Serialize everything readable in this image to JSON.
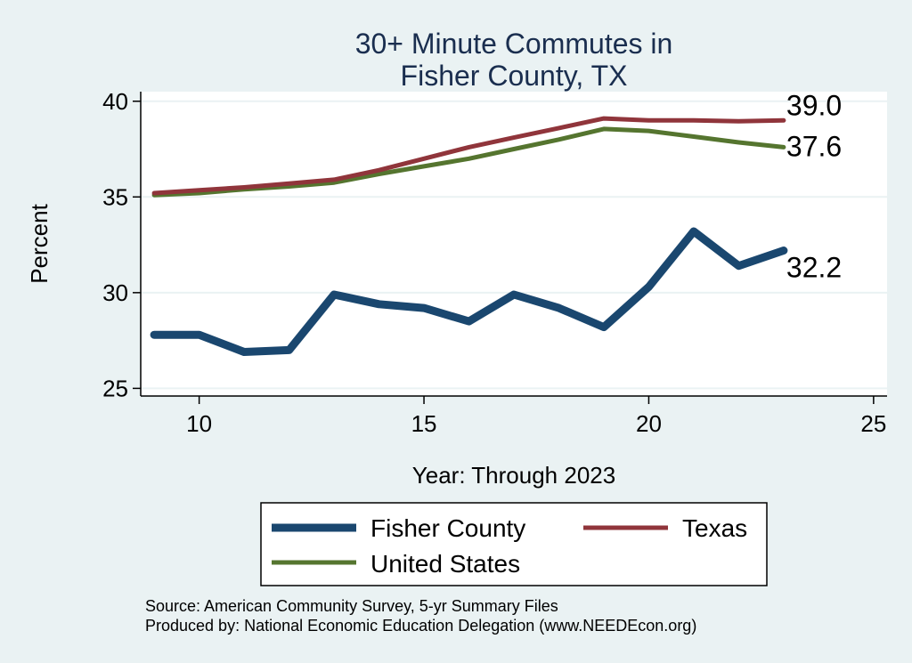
{
  "chart_data": {
    "type": "line",
    "title": [
      "30+ Minute Commutes in",
      "Fisher County, TX"
    ],
    "xlabel": "Year: Through 2023",
    "ylabel": "Percent",
    "xlim": [
      8.7,
      25.3
    ],
    "ylim": [
      24.6,
      40.5
    ],
    "xticks": [
      10,
      15,
      20,
      25
    ],
    "yticks": [
      25,
      30,
      35,
      40
    ],
    "grid": "horizontal",
    "legend_placement": "bottom",
    "series": [
      {
        "name": "Fisher County",
        "color": "#1a476f",
        "x": [
          9,
          10,
          11,
          12,
          13,
          14,
          15,
          16,
          17,
          18,
          19,
          20,
          21,
          22,
          23
        ],
        "values": [
          27.8,
          27.8,
          26.9,
          27.0,
          29.9,
          29.4,
          29.2,
          28.5,
          29.9,
          29.2,
          28.2,
          30.3,
          33.2,
          31.4,
          32.2
        ],
        "end_label": "32.2"
      },
      {
        "name": "Texas",
        "color": "#90353b",
        "x": [
          9,
          10,
          11,
          12,
          13,
          14,
          15,
          16,
          17,
          18,
          19,
          20,
          21,
          22,
          23
        ],
        "values": [
          35.2,
          35.35,
          35.5,
          35.7,
          35.9,
          36.4,
          37.0,
          37.6,
          38.1,
          38.6,
          39.1,
          39.0,
          39.0,
          38.95,
          39.0
        ],
        "end_label": "39.0"
      },
      {
        "name": "United States",
        "color": "#55752f",
        "x": [
          9,
          10,
          11,
          12,
          13,
          14,
          15,
          16,
          17,
          18,
          19,
          20,
          21,
          22,
          23
        ],
        "values": [
          35.1,
          35.2,
          35.4,
          35.55,
          35.75,
          36.2,
          36.6,
          37.0,
          37.5,
          38.0,
          38.55,
          38.45,
          38.15,
          37.85,
          37.6
        ],
        "end_label": "37.6"
      }
    ]
  },
  "legend": {
    "items": [
      "Fisher County",
      "Texas",
      "United States"
    ],
    "colors": [
      "#1a476f",
      "#90353b",
      "#55752f"
    ]
  },
  "source_note": [
    "Source: American Community Survey, 5-yr Summary Files",
    "Produced by: National Economic Education Delegation (www.NEEDEcon.org)"
  ]
}
